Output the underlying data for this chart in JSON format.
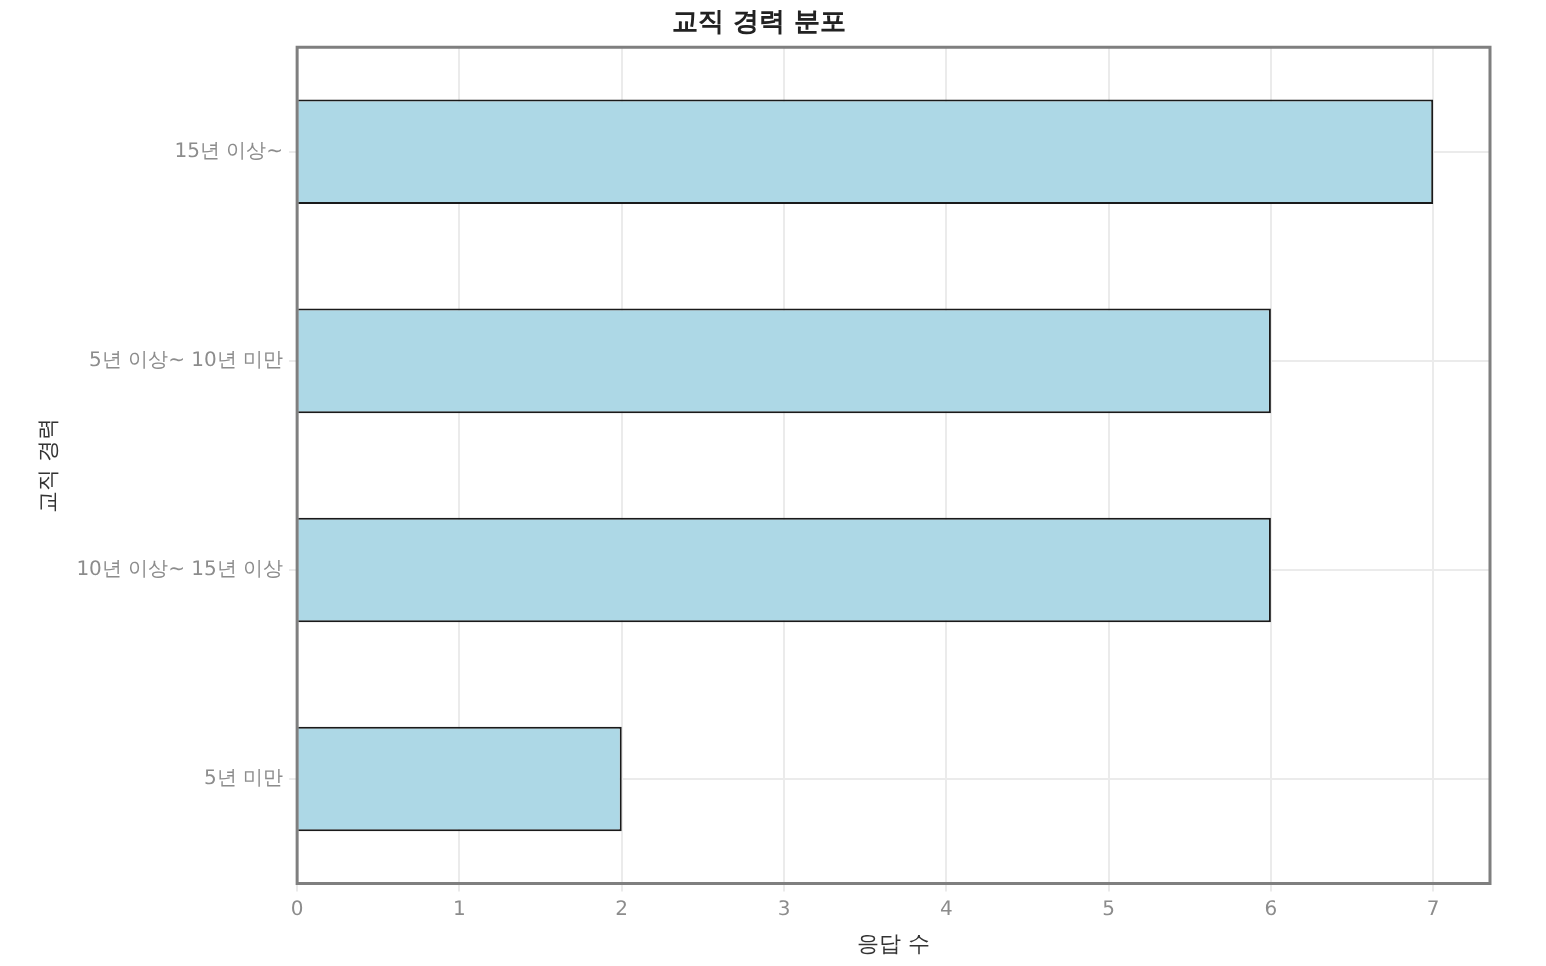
{
  "chart_data": {
    "type": "bar",
    "orientation": "horizontal",
    "title": "교직 경력 분포",
    "xlabel": "응답 수",
    "ylabel": "교직 경력",
    "categories": [
      "15년 이상~",
      "5년 이상~ 10년 미만",
      "10년 이상~ 15년 이상",
      "5년 미만"
    ],
    "values": [
      7,
      6,
      6,
      2
    ],
    "color": "#add8e6",
    "xlim": [
      0,
      7.35
    ],
    "xticks": [
      0,
      1,
      2,
      3,
      4,
      5,
      6,
      7
    ],
    "grid": true,
    "legend": false
  }
}
